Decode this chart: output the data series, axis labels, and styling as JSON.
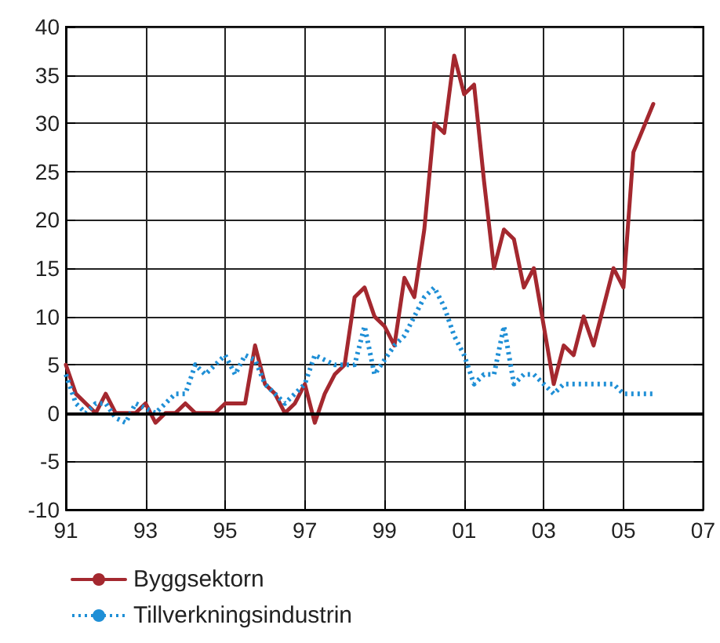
{
  "chart_data": {
    "type": "line",
    "x": [
      1991,
      1991.25,
      1991.5,
      1991.75,
      1992,
      1992.25,
      1992.5,
      1992.75,
      1993,
      1993.25,
      1993.5,
      1993.75,
      1994,
      1994.25,
      1994.5,
      1994.75,
      1995,
      1995.25,
      1995.5,
      1995.75,
      1996,
      1996.25,
      1996.5,
      1996.75,
      1997,
      1997.25,
      1997.5,
      1997.75,
      1998,
      1998.25,
      1998.5,
      1998.75,
      1999,
      1999.25,
      1999.5,
      1999.75,
      2000,
      2000.25,
      2000.5,
      2000.75,
      2001,
      2001.25,
      2001.5,
      2001.75,
      2002,
      2002.25,
      2002.5,
      2002.75,
      2003,
      2003.25,
      2003.5,
      2003.75,
      2004,
      2004.25,
      2004.5,
      2004.75,
      2005,
      2005.25,
      2005.5,
      2005.75
    ],
    "series": [
      {
        "name": "Byggsektorn",
        "color": "#a4282f",
        "line_style": "solid",
        "values": [
          5,
          2,
          1,
          0,
          2,
          0,
          0,
          0,
          1,
          -1,
          0,
          0,
          1,
          0,
          0,
          0,
          1,
          1,
          1,
          7,
          3,
          2,
          0,
          1,
          3,
          -1,
          2,
          4,
          5,
          12,
          13,
          10,
          9,
          7,
          14,
          12,
          19,
          30,
          29,
          37,
          33,
          34,
          24,
          15,
          19,
          18,
          13,
          15,
          9,
          3,
          7,
          6,
          10,
          7,
          11,
          15,
          13,
          27,
          29.5,
          32
        ]
      },
      {
        "name": "Tillverkningsindustrin",
        "color": "#1f8fd6",
        "line_style": "dotted",
        "values": [
          4,
          1,
          0,
          1,
          1,
          -0.5,
          -1,
          1,
          0.5,
          0,
          1,
          2,
          2,
          5,
          4,
          5,
          6,
          4,
          6,
          5.5,
          3,
          2,
          1,
          2,
          3,
          6,
          5.5,
          5,
          5,
          5,
          9,
          4,
          5.5,
          7,
          8,
          10,
          12,
          13,
          11,
          8,
          6,
          3,
          4,
          4,
          9,
          3,
          4,
          4,
          3,
          2,
          3,
          3,
          3,
          3,
          3,
          3,
          2,
          2,
          2,
          2
        ]
      }
    ],
    "xlim": [
      1991,
      2007
    ],
    "xticks": [
      {
        "value": 1991,
        "label": "91"
      },
      {
        "value": 1993,
        "label": "93"
      },
      {
        "value": 1995,
        "label": "95"
      },
      {
        "value": 1997,
        "label": "97"
      },
      {
        "value": 1999,
        "label": "99"
      },
      {
        "value": 2001,
        "label": "01"
      },
      {
        "value": 2003,
        "label": "03"
      },
      {
        "value": 2005,
        "label": "05"
      },
      {
        "value": 2007,
        "label": "07"
      }
    ],
    "ylim": [
      -10,
      40
    ],
    "yticks": [
      -10,
      -5,
      0,
      5,
      10,
      15,
      20,
      25,
      30,
      35,
      40
    ],
    "ref_lines": [
      {
        "axis": "y",
        "value": 0,
        "color": "#000000"
      }
    ],
    "grid": true,
    "legend": "bottom left",
    "marker": "none"
  }
}
